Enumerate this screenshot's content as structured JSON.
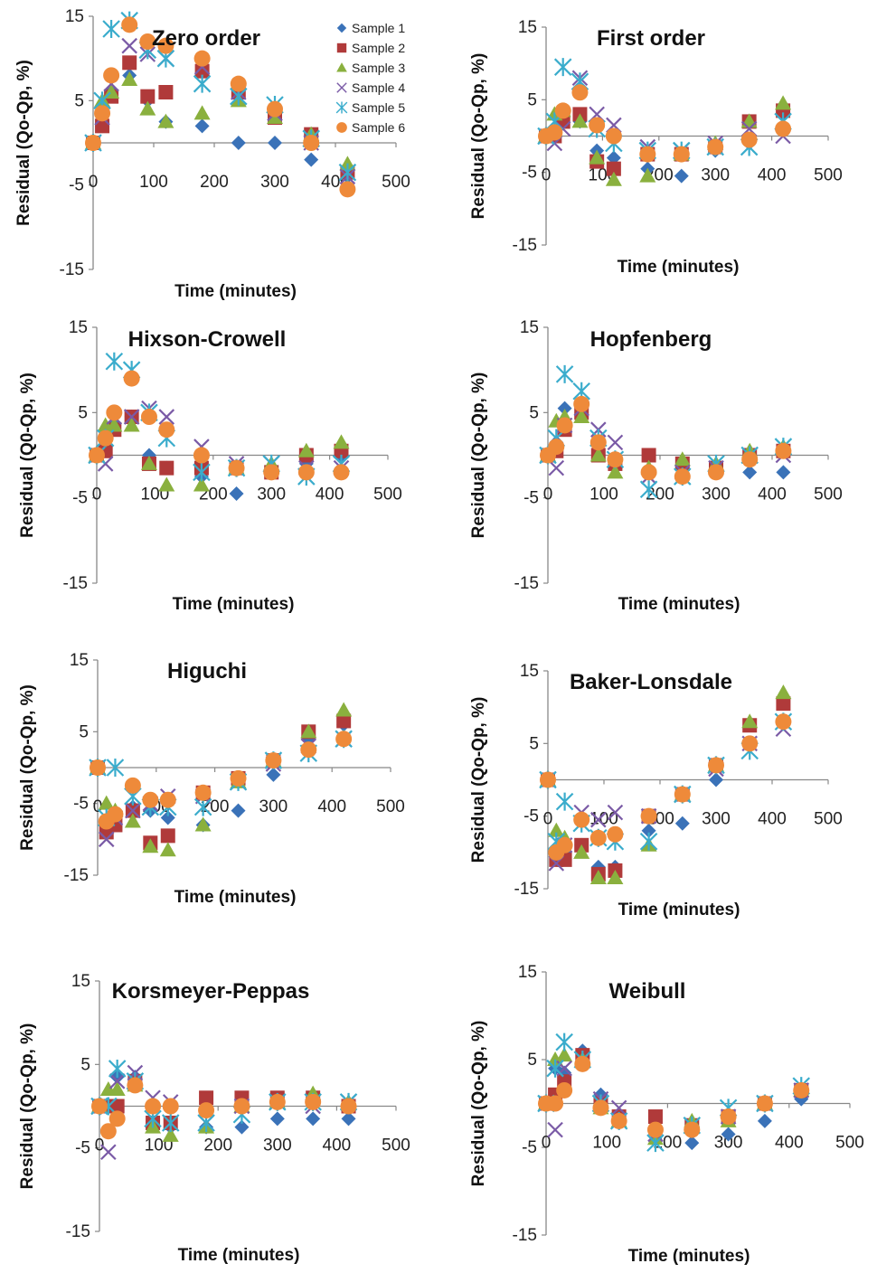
{
  "figure": {
    "legend": {
      "placement": "top-right of first panel",
      "entries": [
        "Sample 1",
        "Sample 2",
        "Sample 3",
        "Sample 4",
        "Sample 5",
        "Sample 6"
      ]
    }
  },
  "series_styles": [
    {
      "name": "Sample 1",
      "color": "#3a72b8",
      "marker": "diamond"
    },
    {
      "name": "Sample 2",
      "color": "#b03a3a",
      "marker": "square"
    },
    {
      "name": "Sample 3",
      "color": "#8ab03e",
      "marker": "triangle"
    },
    {
      "name": "Sample 4",
      "color": "#7a5aa6",
      "marker": "x"
    },
    {
      "name": "Sample 5",
      "color": "#3aaccc",
      "marker": "star"
    },
    {
      "name": "Sample 6",
      "color": "#ee8a3a",
      "marker": "circle"
    }
  ],
  "chart_data": [
    {
      "type": "scatter",
      "title": "Zero order",
      "xlabel": "Time (minutes)",
      "ylabel": "Residual (Qo-Qp, %)",
      "xlim": [
        0,
        500
      ],
      "ylim": [
        -15,
        15
      ],
      "xticks": [
        0,
        100,
        200,
        300,
        400,
        500
      ],
      "yticks": [
        15,
        5,
        -5,
        -15
      ],
      "x": [
        0,
        15,
        30,
        60,
        90,
        120,
        180,
        240,
        300,
        360,
        420
      ],
      "legend": true,
      "series": [
        {
          "name": "Sample 1",
          "values": [
            0,
            2,
            6,
            8,
            5,
            2.5,
            2,
            0,
            0,
            -2,
            -4
          ]
        },
        {
          "name": "Sample 2",
          "values": [
            0,
            2,
            5.5,
            9.5,
            5.5,
            6,
            8.5,
            6,
            3,
            1,
            -3.5
          ]
        },
        {
          "name": "Sample 3",
          "values": [
            0,
            5,
            6,
            7.5,
            4,
            2.5,
            3.5,
            5,
            3,
            1,
            -2.5
          ]
        },
        {
          "name": "Sample 4",
          "values": [
            0,
            3,
            7,
            11.5,
            10.5,
            10,
            9,
            6,
            3.5,
            0,
            -4
          ]
        },
        {
          "name": "Sample 5",
          "values": [
            0,
            5,
            13.5,
            14.5,
            11,
            10,
            7,
            5.5,
            4.5,
            0.5,
            -3.5
          ]
        },
        {
          "name": "Sample 6",
          "values": [
            0,
            3.5,
            8,
            14,
            12,
            11.5,
            10,
            7,
            4,
            0,
            -5.5
          ]
        }
      ]
    },
    {
      "type": "scatter",
      "title": "First order",
      "xlabel": "Time (minutes)",
      "ylabel": "Residual (Qo-Qp, %)",
      "xlim": [
        0,
        500
      ],
      "ylim": [
        -15,
        15
      ],
      "xticks": [
        0,
        100,
        200,
        300,
        400,
        500
      ],
      "yticks": [
        15,
        5,
        -5,
        -15
      ],
      "x": [
        0,
        15,
        30,
        60,
        90,
        120,
        180,
        240,
        300,
        360,
        420
      ],
      "series": [
        {
          "name": "Sample 1",
          "values": [
            0,
            0.5,
            2.5,
            2,
            -2,
            -3,
            -4.5,
            -5.5,
            -2,
            -1,
            3
          ]
        },
        {
          "name": "Sample 2",
          "values": [
            0,
            0,
            2,
            3,
            -3.5,
            -4.5,
            -2.5,
            -2.5,
            -1.5,
            2,
            3.5
          ]
        },
        {
          "name": "Sample 3",
          "values": [
            0,
            3,
            3.5,
            2,
            -3,
            -6,
            -5.5,
            -2.5,
            -1,
            2,
            4.5
          ]
        },
        {
          "name": "Sample 4",
          "values": [
            0,
            -1,
            1,
            8,
            3,
            1.5,
            -1.5,
            -2,
            -1,
            1,
            0
          ]
        },
        {
          "name": "Sample 5",
          "values": [
            0,
            2,
            9.5,
            7.5,
            1,
            -1,
            -2,
            -2,
            -1.5,
            -1.5,
            2
          ]
        },
        {
          "name": "Sample 6",
          "values": [
            0,
            0.5,
            3.5,
            6,
            1.5,
            0,
            -2.5,
            -2.5,
            -1.5,
            -0.5,
            1
          ]
        }
      ]
    },
    {
      "type": "scatter",
      "title": "Hixson-Crowell",
      "xlabel": "Time (minutes)",
      "ylabel": "Residual (Q0-Qp, %)",
      "xlim": [
        0,
        500
      ],
      "ylim": [
        -15,
        15
      ],
      "xticks": [
        0,
        100,
        200,
        300,
        400,
        500
      ],
      "yticks": [
        15,
        5,
        -5,
        -15
      ],
      "x": [
        0,
        15,
        30,
        60,
        90,
        120,
        180,
        240,
        300,
        360,
        420
      ],
      "series": [
        {
          "name": "Sample 1",
          "values": [
            0,
            1,
            3.5,
            4.5,
            0,
            -1.5,
            -2.5,
            -4.5,
            -2,
            -1,
            0
          ]
        },
        {
          "name": "Sample 2",
          "values": [
            0,
            0.5,
            3,
            4.5,
            -1,
            -1.5,
            -1.5,
            -1.5,
            -2,
            0,
            0.5
          ]
        },
        {
          "name": "Sample 3",
          "values": [
            0,
            3.5,
            3.5,
            3.5,
            -1,
            -3.5,
            -3.5,
            -1.5,
            -1,
            0.5,
            1.5
          ]
        },
        {
          "name": "Sample 4",
          "values": [
            0,
            -1,
            4.5,
            4.5,
            5.5,
            4.5,
            1,
            -1,
            -1,
            -1.5,
            -1.5
          ]
        },
        {
          "name": "Sample 5",
          "values": [
            0,
            2,
            11,
            10,
            5,
            2,
            -2,
            -1.5,
            -1,
            -2.5,
            -1
          ]
        },
        {
          "name": "Sample 6",
          "values": [
            0,
            2,
            5,
            9,
            4.5,
            3,
            0,
            -1.5,
            -2,
            -2,
            -2
          ]
        }
      ]
    },
    {
      "type": "scatter",
      "title": "Hopfenberg",
      "xlabel": "Time (minutes)",
      "ylabel": "Residual (Qo-Qp, %)",
      "xlim": [
        0,
        500
      ],
      "ylim": [
        -15,
        15
      ],
      "xticks": [
        0,
        100,
        200,
        300,
        400,
        500
      ],
      "yticks": [
        15,
        5,
        -5,
        -15
      ],
      "x": [
        0,
        15,
        30,
        60,
        90,
        120,
        180,
        240,
        300,
        360,
        420
      ],
      "series": [
        {
          "name": "Sample 1",
          "values": [
            0,
            1.5,
            5.5,
            5,
            0,
            -1,
            -2,
            -2.5,
            -2,
            -2,
            -2
          ]
        },
        {
          "name": "Sample 2",
          "values": [
            0,
            0.5,
            3,
            5,
            0,
            -1,
            0,
            -1,
            -1.5,
            0,
            0.5
          ]
        },
        {
          "name": "Sample 3",
          "values": [
            0,
            4,
            4.5,
            4.5,
            0,
            -2,
            -1.5,
            -0.5,
            -1,
            0.5,
            1
          ]
        },
        {
          "name": "Sample 4",
          "values": [
            0,
            -1.5,
            3.5,
            5.5,
            3,
            1.5,
            -2.5,
            -2,
            -1.5,
            0,
            0
          ]
        },
        {
          "name": "Sample 5",
          "values": [
            0,
            2,
            9.5,
            7.5,
            2,
            -0.5,
            -4,
            -2.5,
            -1,
            0,
            1
          ]
        },
        {
          "name": "Sample 6",
          "values": [
            0,
            1,
            3.5,
            6,
            1.5,
            -0.5,
            -2,
            -2.5,
            -2,
            -0.5,
            0.5
          ]
        }
      ]
    },
    {
      "type": "scatter",
      "title": "Higuchi",
      "xlabel": "Time (minutes)",
      "ylabel": "Residual (Qo-Qp, %)",
      "xlim": [
        0,
        500
      ],
      "ylim": [
        -15,
        15
      ],
      "xticks": [
        0,
        100,
        200,
        300,
        400,
        500
      ],
      "yticks": [
        15,
        5,
        -5,
        -15
      ],
      "x": [
        0,
        15,
        30,
        60,
        90,
        120,
        180,
        240,
        300,
        360,
        420
      ],
      "series": [
        {
          "name": "Sample 1",
          "values": [
            0,
            -9,
            -6.5,
            -5.5,
            -6,
            -7,
            -8,
            -6,
            -1,
            4,
            6
          ]
        },
        {
          "name": "Sample 2",
          "values": [
            0,
            -9,
            -8,
            -6,
            -10.5,
            -9.5,
            -3.5,
            -1.5,
            1,
            5,
            6.5
          ]
        },
        {
          "name": "Sample 3",
          "values": [
            0,
            -5,
            -6,
            -7.5,
            -11,
            -11.5,
            -8,
            -2,
            1,
            5,
            8
          ]
        },
        {
          "name": "Sample 4",
          "values": [
            0,
            -10,
            -7,
            -6,
            -5,
            -4,
            -4,
            -2,
            0.5,
            3,
            4
          ]
        },
        {
          "name": "Sample 5",
          "values": [
            0,
            -7,
            0,
            -4,
            -5.5,
            -5.5,
            -5.5,
            -2,
            1,
            2,
            4
          ]
        },
        {
          "name": "Sample 6",
          "values": [
            0,
            -7.5,
            -6.5,
            -2.5,
            -4.5,
            -4.5,
            -3.5,
            -1.5,
            1,
            2.5,
            4
          ]
        }
      ]
    },
    {
      "type": "scatter",
      "title": "Baker-Lonsdale",
      "xlabel": "Time (minutes)",
      "ylabel": "Residual (Qo-Qp, %)",
      "xlim": [
        0,
        500
      ],
      "ylim": [
        -15,
        15
      ],
      "xticks": [
        0,
        100,
        200,
        300,
        400,
        500
      ],
      "yticks": [
        15,
        5,
        -5,
        -15
      ],
      "x": [
        0,
        15,
        30,
        60,
        90,
        120,
        180,
        240,
        300,
        360,
        420
      ],
      "series": [
        {
          "name": "Sample 1",
          "values": [
            0,
            -11,
            -10,
            -9,
            -12,
            -12,
            -7,
            -6,
            0,
            5,
            8
          ]
        },
        {
          "name": "Sample 2",
          "values": [
            0,
            -11,
            -11,
            -9,
            -13,
            -12.5,
            -5,
            -2,
            2,
            7.5,
            10.5
          ]
        },
        {
          "name": "Sample 3",
          "values": [
            0,
            -7,
            -8,
            -10,
            -13.5,
            -13.5,
            -9,
            -2,
            2,
            8,
            12
          ]
        },
        {
          "name": "Sample 4",
          "values": [
            0,
            -11.5,
            -9,
            -4.5,
            -5.5,
            -4.5,
            -5,
            -2,
            1.5,
            5,
            7
          ]
        },
        {
          "name": "Sample 5",
          "values": [
            0,
            -8.5,
            -3,
            -6,
            -8,
            -8.5,
            -8.5,
            -2,
            2,
            4,
            8
          ]
        },
        {
          "name": "Sample 6",
          "values": [
            0,
            -10,
            -9,
            -5.5,
            -8,
            -7.5,
            -5,
            -2,
            2,
            5,
            8
          ]
        }
      ]
    },
    {
      "type": "scatter",
      "title": "Korsmeyer-Peppas",
      "xlabel": "Time (minutes)",
      "ylabel": "Residual (Qo-Qp, %)",
      "xlim": [
        0,
        500
      ],
      "ylim": [
        -15,
        15
      ],
      "xticks": [
        0,
        100,
        200,
        300,
        400,
        500
      ],
      "yticks": [
        15,
        5,
        -5,
        -15
      ],
      "x": [
        0,
        15,
        30,
        60,
        90,
        120,
        180,
        240,
        300,
        360,
        420
      ],
      "series": [
        {
          "name": "Sample 1",
          "values": [
            0,
            0,
            3.5,
            3.5,
            -2,
            -2.5,
            -2.5,
            -2.5,
            -1.5,
            -1.5,
            -1.5
          ]
        },
        {
          "name": "Sample 2",
          "values": [
            0,
            0,
            0,
            3,
            -2,
            -2,
            1,
            1,
            1,
            1,
            0
          ]
        },
        {
          "name": "Sample 3",
          "values": [
            0,
            2,
            2,
            2.5,
            -2.5,
            -3.5,
            -2.5,
            0,
            0.5,
            1.5,
            0.5
          ]
        },
        {
          "name": "Sample 4",
          "values": [
            0,
            -5.5,
            3,
            4,
            1,
            0.5,
            -2,
            0,
            0.5,
            0,
            0.5
          ]
        },
        {
          "name": "Sample 5",
          "values": [
            0,
            0,
            4.5,
            3,
            -1.5,
            -2,
            -2,
            -1,
            0.5,
            0.5,
            0.5
          ]
        },
        {
          "name": "Sample 6",
          "values": [
            0,
            -3,
            -1.5,
            2.5,
            0,
            0,
            -0.5,
            0,
            0.5,
            0.5,
            0
          ]
        }
      ]
    },
    {
      "type": "scatter",
      "title": "Weibull",
      "xlabel": "Time (minutes)",
      "ylabel": "Residual (Qo-Qp, %)",
      "xlim": [
        0,
        500
      ],
      "ylim": [
        -15,
        15
      ],
      "xticks": [
        0,
        100,
        200,
        300,
        400,
        500
      ],
      "yticks": [
        15,
        5,
        -5,
        -15
      ],
      "x": [
        0,
        15,
        30,
        60,
        90,
        120,
        180,
        240,
        300,
        360,
        420
      ],
      "series": [
        {
          "name": "Sample 1",
          "values": [
            0,
            4,
            3.5,
            6,
            1,
            -2,
            -3.5,
            -4.5,
            -3.5,
            -2,
            0.5
          ]
        },
        {
          "name": "Sample 2",
          "values": [
            0,
            1,
            2.5,
            5.5,
            0,
            -1.5,
            -1.5,
            -2.5,
            -1.5,
            0,
            1.5
          ]
        },
        {
          "name": "Sample 3",
          "values": [
            0,
            5,
            5.5,
            5,
            -0.5,
            -2,
            -4,
            -2,
            -2,
            0,
            1.5
          ]
        },
        {
          "name": "Sample 4",
          "values": [
            0,
            -3,
            4,
            5,
            0.5,
            -0.5,
            -3.5,
            -2.5,
            -1.5,
            0,
            1.5
          ]
        },
        {
          "name": "Sample 5",
          "values": [
            0,
            4,
            7,
            5,
            0,
            -2,
            -4.5,
            -2.5,
            -0.5,
            0,
            2
          ]
        },
        {
          "name": "Sample 6",
          "values": [
            0,
            0,
            1.5,
            4.5,
            -0.5,
            -2,
            -3,
            -3,
            -1.5,
            0,
            1.5
          ]
        }
      ]
    }
  ]
}
